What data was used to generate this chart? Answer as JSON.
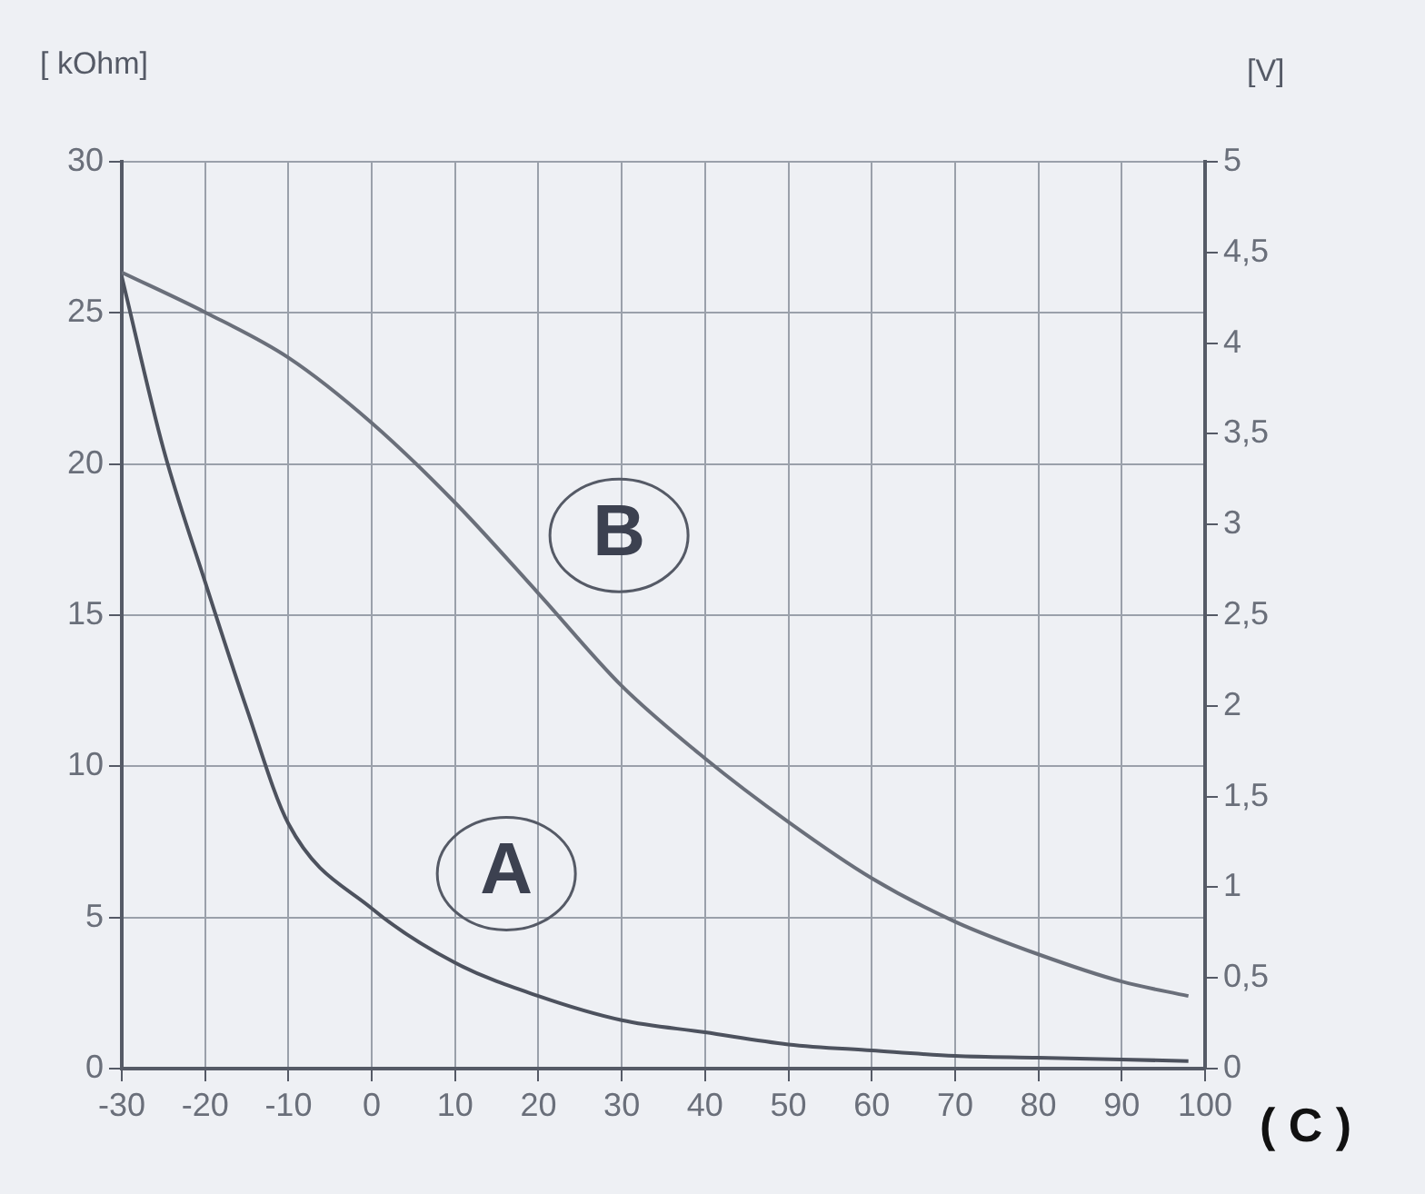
{
  "chart_data": {
    "type": "line",
    "ylabel": "[ kOhm]",
    "y2label": "[V]",
    "xlabel": "( C )",
    "xlim": [
      -30,
      100
    ],
    "xticks": [
      -30,
      -20,
      -10,
      0,
      10,
      20,
      30,
      40,
      50,
      60,
      70,
      80,
      90,
      100
    ],
    "ylim": [
      0,
      30
    ],
    "yticks": [
      0,
      5,
      10,
      15,
      20,
      25,
      30
    ],
    "y2lim": [
      0,
      5
    ],
    "y2ticks": [
      0,
      {
        "value": 0.5,
        "label": "0,5"
      },
      1,
      {
        "value": 1.5,
        "label": "1,5"
      },
      2,
      {
        "value": 2.5,
        "label": "2,5"
      },
      3,
      {
        "value": 3.5,
        "label": "3,5"
      },
      4,
      {
        "value": 4.5,
        "label": "4,5"
      },
      5
    ],
    "grid": true,
    "legend": false,
    "line_style": "solid",
    "marker": "none",
    "series": [
      {
        "name": "A",
        "color": "#4d525e",
        "x": [
          -30,
          -25,
          -20,
          -15,
          -10,
          0,
          10,
          20,
          30,
          40,
          50,
          60,
          70,
          80,
          90,
          98
        ],
        "values": [
          26.2,
          20.5,
          16.1,
          11.9,
          8.1,
          5.3,
          3.5,
          2.4,
          1.6,
          1.2,
          0.8,
          0.6,
          0.42,
          0.36,
          0.3,
          0.25
        ]
      },
      {
        "name": "B",
        "color": "#6a6f7a",
        "axis": "y2",
        "x": [
          -30,
          -20,
          -10,
          0,
          10,
          20,
          30,
          40,
          50,
          60,
          70,
          80,
          90,
          98
        ],
        "values": [
          4.39,
          4.17,
          3.92,
          3.56,
          3.12,
          2.62,
          2.11,
          1.71,
          1.36,
          1.05,
          0.81,
          0.63,
          0.48,
          0.4
        ]
      }
    ]
  }
}
